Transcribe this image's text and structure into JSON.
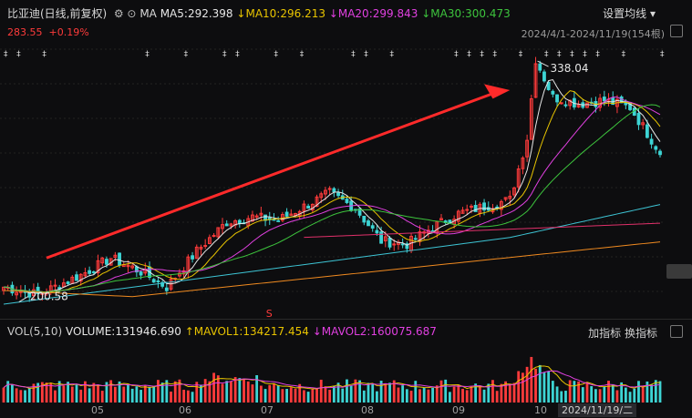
{
  "header": {
    "stock_name": "比亚迪(日线,前复权)",
    "icons": [
      "settings-icon",
      "eye-icon"
    ],
    "ma_label": "MA",
    "ma5": "MA5:292.398",
    "ma10": "MA10:296.213",
    "ma20": "MA20:299.843",
    "ma30": "MA30:300.473",
    "settings_label": "设置均线",
    "current_price": "283.55",
    "change_pct": "+0.19%",
    "date_range": "2024/4/1-2024/11/19(154根)"
  },
  "volume_header": {
    "label": "VOL(5,10)",
    "volume": "VOLUME:131946.690",
    "mavol1": "MAVOL1:134217.454",
    "mavol2": "MAVOL2:160075.687",
    "add_indicator": "加指标",
    "switch_indicator": "换指标"
  },
  "x_axis": {
    "months": [
      "05",
      "06",
      "07",
      "08",
      "09",
      "10"
    ],
    "cursor_date": "2024/11/19/二"
  },
  "annotations": {
    "high_label": "338.04",
    "low_label": "200.58",
    "s_marker": "S"
  },
  "colors": {
    "up": "#ff3b3b",
    "down": "#3dd4d4",
    "ma5": "#e6e6e6",
    "ma10": "#e8c400",
    "ma20": "#e040e0",
    "ma30": "#3dc43d",
    "ma60": "#3dc4d4",
    "ma120": "#f08a20",
    "ma250": "#e0306a",
    "arrow": "#ff2a2a"
  },
  "chart_data": {
    "type": "candlestick",
    "x_range": [
      "2024-04-01",
      "2024-11-19"
    ],
    "bars": 154,
    "y_range_price": [
      195,
      345
    ],
    "price_path": [
      [
        0,
        205
      ],
      [
        8,
        200.58
      ],
      [
        18,
        212
      ],
      [
        25,
        222
      ],
      [
        32,
        214
      ],
      [
        38,
        205
      ],
      [
        45,
        226
      ],
      [
        52,
        243
      ],
      [
        58,
        246
      ],
      [
        64,
        244
      ],
      [
        70,
        252
      ],
      [
        76,
        260
      ],
      [
        82,
        251
      ],
      [
        88,
        232
      ],
      [
        94,
        230
      ],
      [
        100,
        240
      ],
      [
        106,
        248
      ],
      [
        112,
        252
      ],
      [
        118,
        256
      ],
      [
        122,
        292
      ],
      [
        124,
        338.04
      ],
      [
        128,
        316
      ],
      [
        134,
        312
      ],
      [
        140,
        314
      ],
      [
        146,
        310
      ],
      [
        153,
        283.55
      ]
    ],
    "series": [
      {
        "name": "MA5",
        "last": 292.398
      },
      {
        "name": "MA10",
        "last": 296.213
      },
      {
        "name": "MA20",
        "last": 299.843
      },
      {
        "name": "MA30",
        "last": 300.473
      }
    ],
    "volume": {
      "last": 131946.69,
      "mavol1": 134217.454,
      "mavol2": 160075.687
    }
  }
}
